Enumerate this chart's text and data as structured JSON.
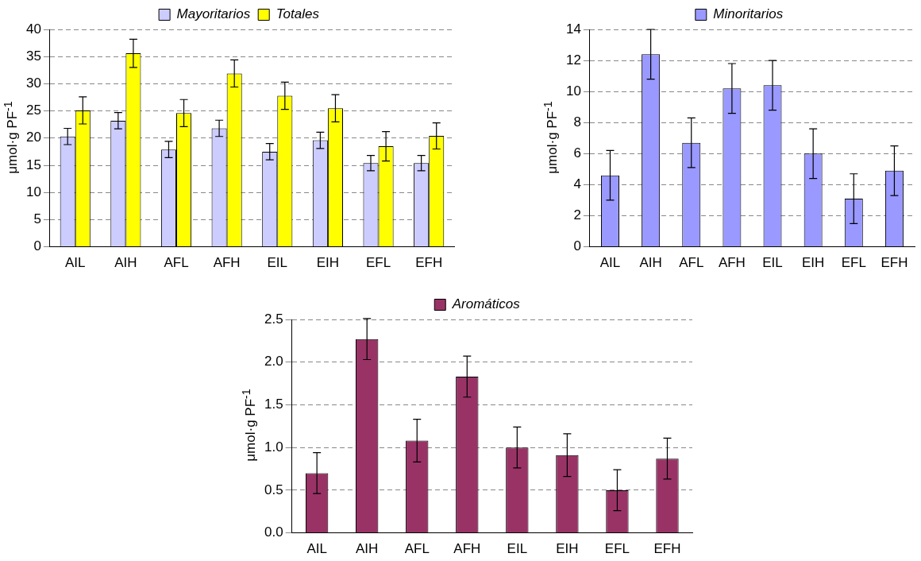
{
  "chart_data": [
    {
      "type": "bar",
      "categories": [
        "AIL",
        "AIH",
        "AFL",
        "AFH",
        "EIL",
        "EIH",
        "EFL",
        "EFH"
      ],
      "ylabel": "μmol·g PF$^{-1}$",
      "ylim": [
        0,
        40
      ],
      "yticks": [
        0,
        5,
        10,
        15,
        20,
        25,
        30,
        35,
        40
      ],
      "grid": "y",
      "legend": "top",
      "series": [
        {
          "name": "Mayoritarios",
          "color": "#ccccff",
          "values": [
            20.3,
            23.2,
            17.9,
            21.8,
            17.5,
            19.6,
            15.4,
            15.4
          ],
          "errors": [
            1.5,
            1.5,
            1.5,
            1.5,
            1.5,
            1.5,
            1.4,
            1.4
          ]
        },
        {
          "name": "Totales",
          "color": "#ffff00",
          "values": [
            25.1,
            35.6,
            24.6,
            31.9,
            27.8,
            25.5,
            18.5,
            20.4
          ],
          "errors": [
            2.5,
            2.6,
            2.5,
            2.5,
            2.5,
            2.5,
            2.7,
            2.4
          ]
        }
      ]
    },
    {
      "type": "bar",
      "categories": [
        "AIL",
        "AIH",
        "AFL",
        "AFH",
        "EIL",
        "EIH",
        "EFL",
        "EFH"
      ],
      "ylabel": "μmol·g PF$^{-1}$",
      "ylim": [
        0,
        14
      ],
      "yticks": [
        0,
        2,
        4,
        6,
        8,
        10,
        12,
        14
      ],
      "grid": "y",
      "legend": "top",
      "series": [
        {
          "name": "Minoritarios",
          "color": "#9999ff",
          "values": [
            4.6,
            12.4,
            6.7,
            10.2,
            10.4,
            6.0,
            3.1,
            4.9
          ],
          "errors": [
            1.6,
            1.6,
            1.6,
            1.6,
            1.6,
            1.6,
            1.6,
            1.6
          ]
        }
      ]
    },
    {
      "type": "bar",
      "categories": [
        "AIL",
        "AIH",
        "AFL",
        "AFH",
        "EIL",
        "EIH",
        "EFL",
        "EFH"
      ],
      "ylabel": "μmol·g PF$^{-1}$",
      "ylim": [
        0,
        2.5
      ],
      "yticks": [
        {
          "value": 0,
          "label": "0.0"
        },
        {
          "value": 0.5,
          "label": "0.5"
        },
        {
          "value": 1,
          "label": "1.0"
        },
        {
          "value": 1.5,
          "label": "1.5"
        },
        {
          "value": 2,
          "label": "2.0"
        },
        {
          "value": 2.5,
          "label": "2.5"
        }
      ],
      "grid": "y",
      "legend": "top",
      "series": [
        {
          "name": "Aromáticos",
          "color": "#993366",
          "values": [
            0.7,
            2.27,
            1.08,
            1.83,
            1.0,
            0.91,
            0.5,
            0.87
          ],
          "errors": [
            0.24,
            0.24,
            0.25,
            0.24,
            0.24,
            0.25,
            0.24,
            0.24
          ]
        }
      ]
    }
  ]
}
